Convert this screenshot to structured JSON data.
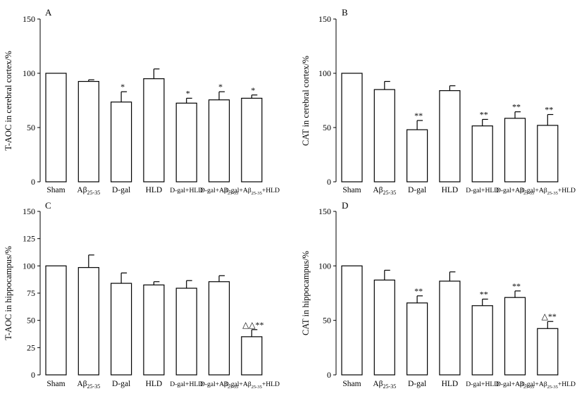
{
  "chart_data": [
    {
      "type": "bar",
      "panel": "A",
      "ylabel": "T-AOC in cerebral cortex/%",
      "ylim": [
        0,
        150
      ],
      "yticks": [
        0,
        50,
        100,
        150
      ],
      "categories": [
        "Sham",
        "Aβ25-35",
        "D-gal",
        "HLD",
        "D-gal+HLD",
        "D-gal+Aβ25-35",
        "D-gal+Aβ25-35+HLD"
      ],
      "values": [
        100,
        92.5,
        73.5,
        95,
        72.5,
        75.5,
        77
      ],
      "errors": [
        0,
        1.5,
        9.5,
        9,
        4.5,
        7.5,
        3
      ],
      "significance": [
        "",
        "",
        "*",
        "",
        "*",
        "*",
        "*"
      ]
    },
    {
      "type": "bar",
      "panel": "B",
      "ylabel": "CAT in cerebral cortex/%",
      "ylim": [
        0,
        150
      ],
      "yticks": [
        0,
        50,
        100,
        150
      ],
      "categories": [
        "Sham",
        "Aβ25-35",
        "D-gal",
        "HLD",
        "D-gal+HLD",
        "D-gal+Aβ25-35",
        "D-gal+Aβ25-35+HLD"
      ],
      "values": [
        100,
        85,
        48,
        84,
        51.5,
        58.5,
        52
      ],
      "errors": [
        0,
        7.5,
        8.5,
        4.5,
        6,
        6,
        10
      ],
      "significance": [
        "",
        "",
        "**",
        "",
        "**",
        "**",
        "**"
      ]
    },
    {
      "type": "bar",
      "panel": "C",
      "ylabel": "T-AOC in hippocampus/%",
      "ylim": [
        0,
        150
      ],
      "yticks": [
        0,
        25,
        50,
        75,
        100,
        125,
        150
      ],
      "categories": [
        "Sham",
        "Aβ25-35",
        "D-gal",
        "HLD",
        "D-gal+HLD",
        "D-gal+Aβ25-35",
        "D-gal+Aβ25-35+HLD"
      ],
      "values": [
        100,
        98.5,
        84,
        82.5,
        79.5,
        85.5,
        35
      ],
      "errors": [
        0,
        11.5,
        9.5,
        3,
        7,
        5.5,
        6.5
      ],
      "significance": [
        "",
        "",
        "",
        "",
        "",
        "",
        "△△**"
      ]
    },
    {
      "type": "bar",
      "panel": "D",
      "ylabel": "CAT in hippocampus/%",
      "ylim": [
        0,
        150
      ],
      "yticks": [
        0,
        50,
        100,
        150
      ],
      "categories": [
        "Sham",
        "Aβ25-35",
        "D-gal",
        "HLD",
        "D-gal+HLD",
        "D-gal+Aβ25-35",
        "D-gal+Aβ25-35+HLD"
      ],
      "values": [
        100,
        87,
        66,
        86,
        63.5,
        71,
        42.5
      ],
      "errors": [
        0,
        9,
        6.5,
        8.5,
        6,
        6,
        6.5
      ],
      "significance": [
        "",
        "",
        "**",
        "",
        "**",
        "**",
        "△**"
      ]
    }
  ]
}
